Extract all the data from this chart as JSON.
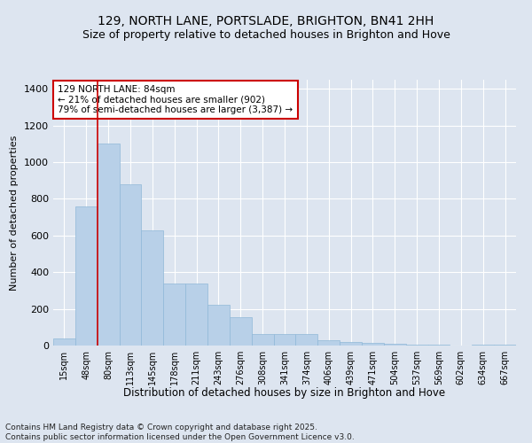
{
  "title": "129, NORTH LANE, PORTSLADE, BRIGHTON, BN41 2HH",
  "subtitle": "Size of property relative to detached houses in Brighton and Hove",
  "xlabel": "Distribution of detached houses by size in Brighton and Hove",
  "ylabel": "Number of detached properties",
  "categories": [
    "15sqm",
    "48sqm",
    "80sqm",
    "113sqm",
    "145sqm",
    "178sqm",
    "211sqm",
    "243sqm",
    "276sqm",
    "308sqm",
    "341sqm",
    "374sqm",
    "406sqm",
    "439sqm",
    "471sqm",
    "504sqm",
    "537sqm",
    "569sqm",
    "602sqm",
    "634sqm",
    "667sqm"
  ],
  "values": [
    40,
    760,
    1100,
    880,
    630,
    340,
    340,
    220,
    155,
    65,
    65,
    65,
    30,
    20,
    15,
    10,
    5,
    5,
    0,
    5,
    5
  ],
  "bar_color": "#b8d0e8",
  "bar_edge_color": "#90b8d8",
  "vline_color": "#cc0000",
  "vline_x_index": 2,
  "annotation_text": "129 NORTH LANE: 84sqm\n← 21% of detached houses are smaller (902)\n79% of semi-detached houses are larger (3,387) →",
  "annotation_box_color": "#ffffff",
  "annotation_box_edge": "#cc0000",
  "title_fontsize": 10,
  "subtitle_fontsize": 9,
  "xlabel_fontsize": 8.5,
  "ylabel_fontsize": 8,
  "tick_fontsize": 7,
  "annotation_fontsize": 7.5,
  "footer": "Contains HM Land Registry data © Crown copyright and database right 2025.\nContains public sector information licensed under the Open Government Licence v3.0.",
  "footer_fontsize": 6.5,
  "ylim": [
    0,
    1450
  ],
  "background_color": "#dde5f0",
  "plot_background": "#dde5f0",
  "grid_color": "#ffffff",
  "grid_linewidth": 0.8,
  "yticks": [
    0,
    200,
    400,
    600,
    800,
    1000,
    1200,
    1400
  ]
}
